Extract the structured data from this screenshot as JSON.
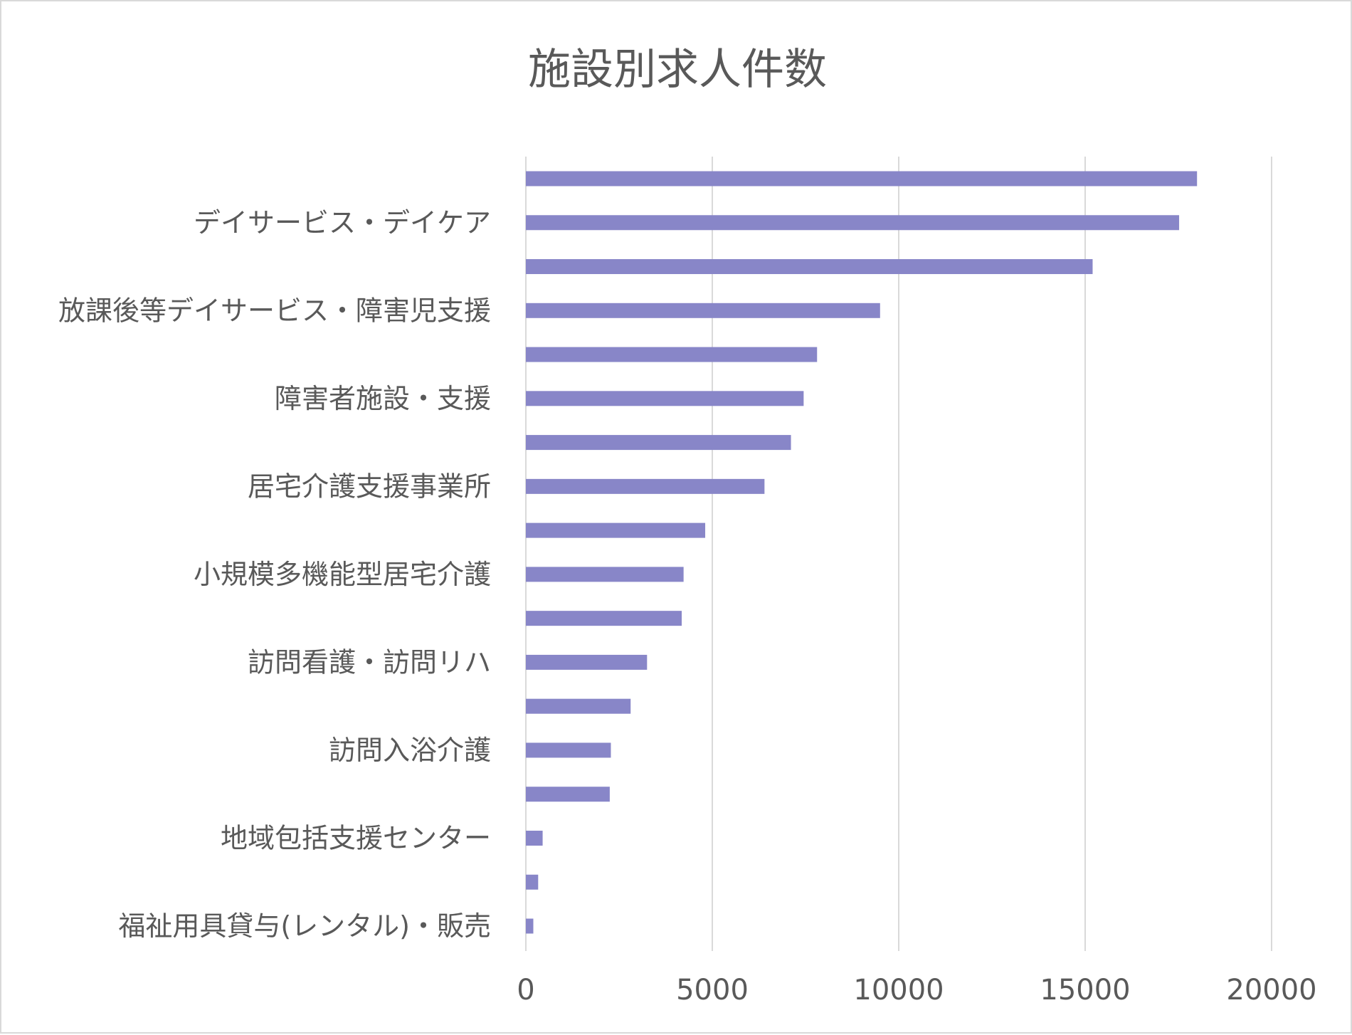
{
  "chart_data": {
    "type": "bar",
    "orientation": "horizontal",
    "title": "施設別求人件数",
    "xlabel": "",
    "ylabel": "",
    "categories": [
      "",
      "デイサービス・デイケア",
      "",
      "放課後等デイサービス・障害児支援",
      "",
      "障害者施設・支援",
      "",
      "居宅介護支援事業所",
      "",
      "小規模多機能型居宅介護",
      "",
      "訪問看護・訪問リハ",
      "",
      "訪問入浴介護",
      "",
      "地域包括支援センター",
      "",
      "福祉用具貸与(レンタル)・販売"
    ],
    "values": [
      18000,
      17520,
      15200,
      9500,
      7810,
      7450,
      7110,
      6400,
      4810,
      4230,
      4180,
      3250,
      2810,
      2280,
      2250,
      450,
      330,
      200
    ],
    "xlim": [
      0,
      20000
    ],
    "xticks": [
      "0",
      "5000",
      "10000",
      "15000",
      "20000"
    ],
    "grid": true,
    "legend": "none",
    "bar_color": "#8886c8",
    "grid_color": "#d9d9d9",
    "text_color": "#595959"
  }
}
